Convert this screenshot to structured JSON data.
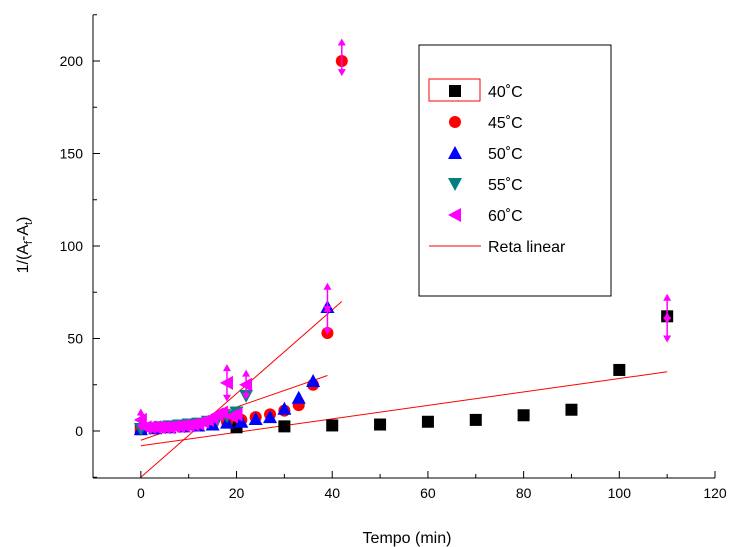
{
  "chart_data": {
    "type": "scatter",
    "title": "",
    "xlabel": "Tempo (min)",
    "ylabel_parts": [
      "1/(A",
      "f",
      "-A",
      "t",
      ")"
    ],
    "xlim": [
      -10,
      120
    ],
    "ylim": [
      -25,
      225
    ],
    "xticks": [
      0,
      20,
      40,
      60,
      80,
      100,
      120
    ],
    "yticks": [
      0,
      50,
      100,
      150,
      200
    ],
    "grid": false,
    "legend_position": "top-right",
    "legend_labels": [
      "40˚C",
      "45˚C",
      "50˚C",
      "55˚C",
      "60˚C",
      "Reta linear"
    ],
    "series": [
      {
        "name": "40˚C",
        "marker": "square",
        "color": "#000000",
        "x": [
          0,
          20,
          30,
          40,
          50,
          60,
          70,
          80,
          90,
          100,
          110
        ],
        "y": [
          1,
          2,
          2.5,
          3,
          3.5,
          5,
          6,
          8.5,
          11.5,
          33,
          62
        ]
      },
      {
        "name": "45˚C",
        "marker": "circle",
        "color": "#ff0000",
        "x": [
          0,
          3,
          6,
          9,
          12,
          15,
          18,
          21,
          24,
          27,
          30,
          33,
          36,
          39,
          42
        ],
        "y": [
          1,
          1.5,
          2,
          2.5,
          3,
          4,
          5,
          6,
          7.5,
          9,
          11,
          14,
          25,
          53,
          200
        ]
      },
      {
        "name": "50˚C",
        "marker": "triangle-up",
        "color": "#0000ff",
        "x": [
          0,
          3,
          6,
          9,
          12,
          15,
          18,
          21,
          24,
          27,
          30,
          33,
          36,
          39
        ],
        "y": [
          1,
          1.5,
          2,
          2.5,
          3,
          3.5,
          4.5,
          5,
          6.5,
          7.5,
          12,
          18,
          27,
          67
        ]
      },
      {
        "name": "55˚C",
        "marker": "triangle-down",
        "color": "#008080",
        "x": [
          0,
          2,
          4,
          6,
          8,
          10,
          12,
          14,
          16,
          18,
          20,
          22
        ],
        "y": [
          1,
          1.5,
          2,
          2.5,
          3,
          3.5,
          4,
          5,
          6,
          8,
          10,
          19
        ]
      },
      {
        "name": "60˚C",
        "marker": "triangle-left",
        "color": "#ff00ff",
        "x": [
          0,
          1,
          2,
          3,
          4,
          5,
          6,
          7,
          8,
          9,
          10,
          11,
          12,
          13,
          14,
          15,
          16,
          17,
          18,
          19,
          20,
          22
        ],
        "y": [
          6,
          2,
          2,
          2,
          2,
          2,
          2,
          2.5,
          2.5,
          3,
          3,
          3.5,
          4,
          5,
          6,
          7,
          9,
          10,
          26,
          8,
          9,
          25
        ]
      }
    ],
    "fit_lines": [
      {
        "name": "Reta linear",
        "color": "#ff0000",
        "x": [
          0,
          110
        ],
        "y": [
          -8,
          32
        ]
      },
      {
        "name": "Reta linear",
        "color": "#ff0000",
        "x": [
          0,
          39
        ],
        "y": [
          -5,
          30
        ]
      },
      {
        "name": "Reta linear",
        "color": "#ff0000",
        "x": [
          0,
          42
        ],
        "y": [
          -25,
          70
        ]
      }
    ],
    "error_bar_points": [
      {
        "series": "60˚C",
        "x": 0,
        "y": 6,
        "err": 4
      },
      {
        "series": "60˚C",
        "x": 18,
        "y": 26,
        "err": 8
      },
      {
        "series": "60˚C",
        "x": 22,
        "y": 25,
        "err": 6
      },
      {
        "series": "60˚C",
        "x": 39,
        "y": 72,
        "err": 6
      },
      {
        "series": "60˚C",
        "x": 39,
        "y": 60,
        "err": 6
      },
      {
        "series": "60˚C",
        "x": 42,
        "y": 202,
        "err": 8
      },
      {
        "series": "60˚C",
        "x": 110,
        "y": 66,
        "err": 6
      },
      {
        "series": "60˚C",
        "x": 110,
        "y": 56,
        "err": 6
      }
    ]
  }
}
